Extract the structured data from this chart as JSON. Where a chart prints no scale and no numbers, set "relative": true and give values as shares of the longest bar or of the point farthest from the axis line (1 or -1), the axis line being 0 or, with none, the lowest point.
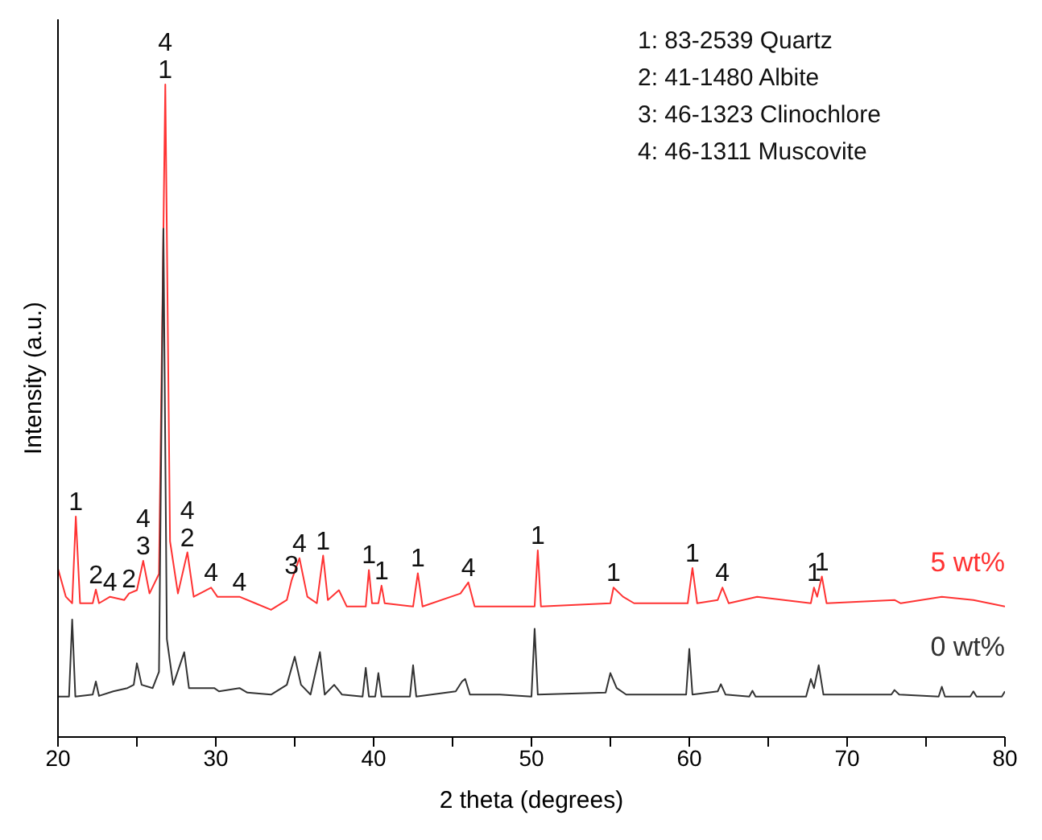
{
  "chart_data": {
    "type": "line",
    "relative": true,
    "xlabel": "2 theta (degrees)",
    "ylabel": "Intensity (a.u.)",
    "xlim": [
      20,
      80
    ],
    "xticks": [
      20,
      {
        "value": 25,
        "label": null
      },
      30,
      {
        "value": 35,
        "label": null
      },
      40,
      {
        "value": 45,
        "label": null
      },
      50,
      {
        "value": 55,
        "label": null
      },
      60,
      {
        "value": 65,
        "label": null
      },
      70,
      {
        "value": 75,
        "label": null
      },
      80
    ],
    "grid": false,
    "legend": false,
    "marker": "none",
    "line_style": "solid",
    "series": [
      {
        "name": "0 wt%",
        "color": "#333333",
        "x": [
          20,
          20.7,
          20.9,
          21.1,
          22.2,
          22.4,
          22.6,
          23.5,
          24.4,
          24.8,
          25.0,
          25.3,
          26.0,
          26.4,
          26.68,
          26.9,
          27.3,
          28.0,
          28.3,
          29.9,
          30.2,
          31.5,
          32,
          33.5,
          34.5,
          35.0,
          35.4,
          36.0,
          36.6,
          36.9,
          37.5,
          38,
          39.3,
          39.5,
          39.7,
          40.1,
          40.3,
          40.5,
          42.3,
          42.5,
          42.7,
          45.2,
          45.6,
          45.8,
          46.1,
          48,
          50.0,
          50.2,
          50.4,
          54.7,
          55.0,
          55.4,
          56,
          59.8,
          60.0,
          60.2,
          61.8,
          62.0,
          62.3,
          63.8,
          64.0,
          64.2,
          67.4,
          67.7,
          67.9,
          68.2,
          68.5,
          72.8,
          73.0,
          73.3,
          75.8,
          76.0,
          76.2,
          77.8,
          78.0,
          78.2,
          79.8,
          80
        ],
        "values": [
          0.062,
          0.062,
          0.18,
          0.062,
          0.065,
          0.085,
          0.063,
          0.07,
          0.075,
          0.08,
          0.113,
          0.08,
          0.075,
          0.1,
          0.779,
          0.15,
          0.08,
          0.13,
          0.075,
          0.075,
          0.07,
          0.075,
          0.068,
          0.065,
          0.08,
          0.123,
          0.08,
          0.065,
          0.13,
          0.065,
          0.08,
          0.065,
          0.062,
          0.106,
          0.062,
          0.062,
          0.098,
          0.062,
          0.062,
          0.11,
          0.062,
          0.07,
          0.085,
          0.089,
          0.065,
          0.065,
          0.062,
          0.166,
          0.065,
          0.068,
          0.098,
          0.075,
          0.065,
          0.065,
          0.135,
          0.065,
          0.07,
          0.081,
          0.065,
          0.062,
          0.071,
          0.062,
          0.062,
          0.089,
          0.075,
          0.11,
          0.065,
          0.065,
          0.072,
          0.065,
          0.062,
          0.077,
          0.062,
          0.062,
          0.07,
          0.062,
          0.062,
          0.07
        ]
      },
      {
        "name": "5 wt%",
        "color": "#ff3333",
        "x": [
          20,
          20.5,
          20.9,
          21.13,
          21.4,
          22.2,
          22.4,
          22.6,
          23.3,
          24.2,
          24.5,
          25.0,
          25.4,
          25.8,
          26.4,
          26.8,
          27.1,
          27.6,
          28.2,
          28.6,
          29.7,
          30.1,
          31.5,
          32.5,
          33.5,
          34.5,
          34.8,
          35.3,
          35.8,
          36.4,
          36.8,
          37.1,
          37.8,
          38.3,
          39.5,
          39.7,
          39.9,
          40.3,
          40.5,
          40.7,
          42.5,
          42.8,
          43.1,
          45.5,
          46.0,
          46.4,
          50.2,
          50.4,
          50.6,
          55.0,
          55.2,
          55.8,
          56.5,
          59.9,
          60.2,
          60.5,
          61.8,
          62.1,
          62.5,
          64.3,
          67.7,
          67.9,
          68.1,
          68.4,
          68.7,
          73.0,
          73.4,
          76.0,
          78,
          80
        ],
        "values": [
          0.258,
          0.215,
          0.205,
          0.338,
          0.205,
          0.205,
          0.226,
          0.205,
          0.215,
          0.21,
          0.22,
          0.225,
          0.27,
          0.22,
          0.25,
          1.0,
          0.3,
          0.22,
          0.283,
          0.215,
          0.229,
          0.215,
          0.215,
          0.205,
          0.195,
          0.21,
          0.24,
          0.274,
          0.215,
          0.205,
          0.278,
          0.21,
          0.225,
          0.2,
          0.2,
          0.256,
          0.205,
          0.205,
          0.232,
          0.205,
          0.2,
          0.251,
          0.2,
          0.22,
          0.237,
          0.2,
          0.2,
          0.286,
          0.2,
          0.205,
          0.229,
          0.215,
          0.205,
          0.205,
          0.259,
          0.205,
          0.21,
          0.229,
          0.205,
          0.215,
          0.205,
          0.229,
          0.215,
          0.246,
          0.205,
          0.21,
          0.205,
          0.215,
          0.21,
          0.2
        ]
      }
    ],
    "annotations": [
      "1: 83-2539 Quartz",
      "2: 41-1480 Albite",
      "3: 46-1323 Clinochlore",
      "4: 46-1311 Muscovite",
      {
        "text": "4\n1",
        "x": 26.8,
        "y": 1.0
      },
      {
        "text": "1",
        "x": 21.13,
        "y": 0.338
      },
      {
        "text": "2",
        "x": 22.4,
        "y": 0.226
      },
      {
        "text": "4",
        "x": 23.3,
        "y": 0.215
      },
      {
        "text": "2",
        "x": 24.5,
        "y": 0.22
      },
      {
        "text": "4\n3",
        "x": 25.4,
        "y": 0.27
      },
      {
        "text": "4\n2",
        "x": 28.2,
        "y": 0.283
      },
      {
        "text": "4",
        "x": 29.7,
        "y": 0.229
      },
      {
        "text": "4",
        "x": 31.5,
        "y": 0.215
      },
      {
        "text": "3",
        "x": 34.8,
        "y": 0.24
      },
      {
        "text": "4",
        "x": 35.3,
        "y": 0.274
      },
      {
        "text": "1",
        "x": 36.8,
        "y": 0.278
      },
      {
        "text": "1",
        "x": 39.7,
        "y": 0.256
      },
      {
        "text": "1",
        "x": 40.5,
        "y": 0.232
      },
      {
        "text": "1",
        "x": 42.8,
        "y": 0.251
      },
      {
        "text": "4",
        "x": 46.0,
        "y": 0.237
      },
      {
        "text": "1",
        "x": 50.4,
        "y": 0.286
      },
      {
        "text": "1",
        "x": 55.2,
        "y": 0.229
      },
      {
        "text": "1",
        "x": 60.2,
        "y": 0.259
      },
      {
        "text": "4",
        "x": 62.1,
        "y": 0.229
      },
      {
        "text": "1",
        "x": 67.9,
        "y": 0.229
      },
      {
        "text": "1",
        "x": 68.4,
        "y": 0.246
      }
    ]
  }
}
